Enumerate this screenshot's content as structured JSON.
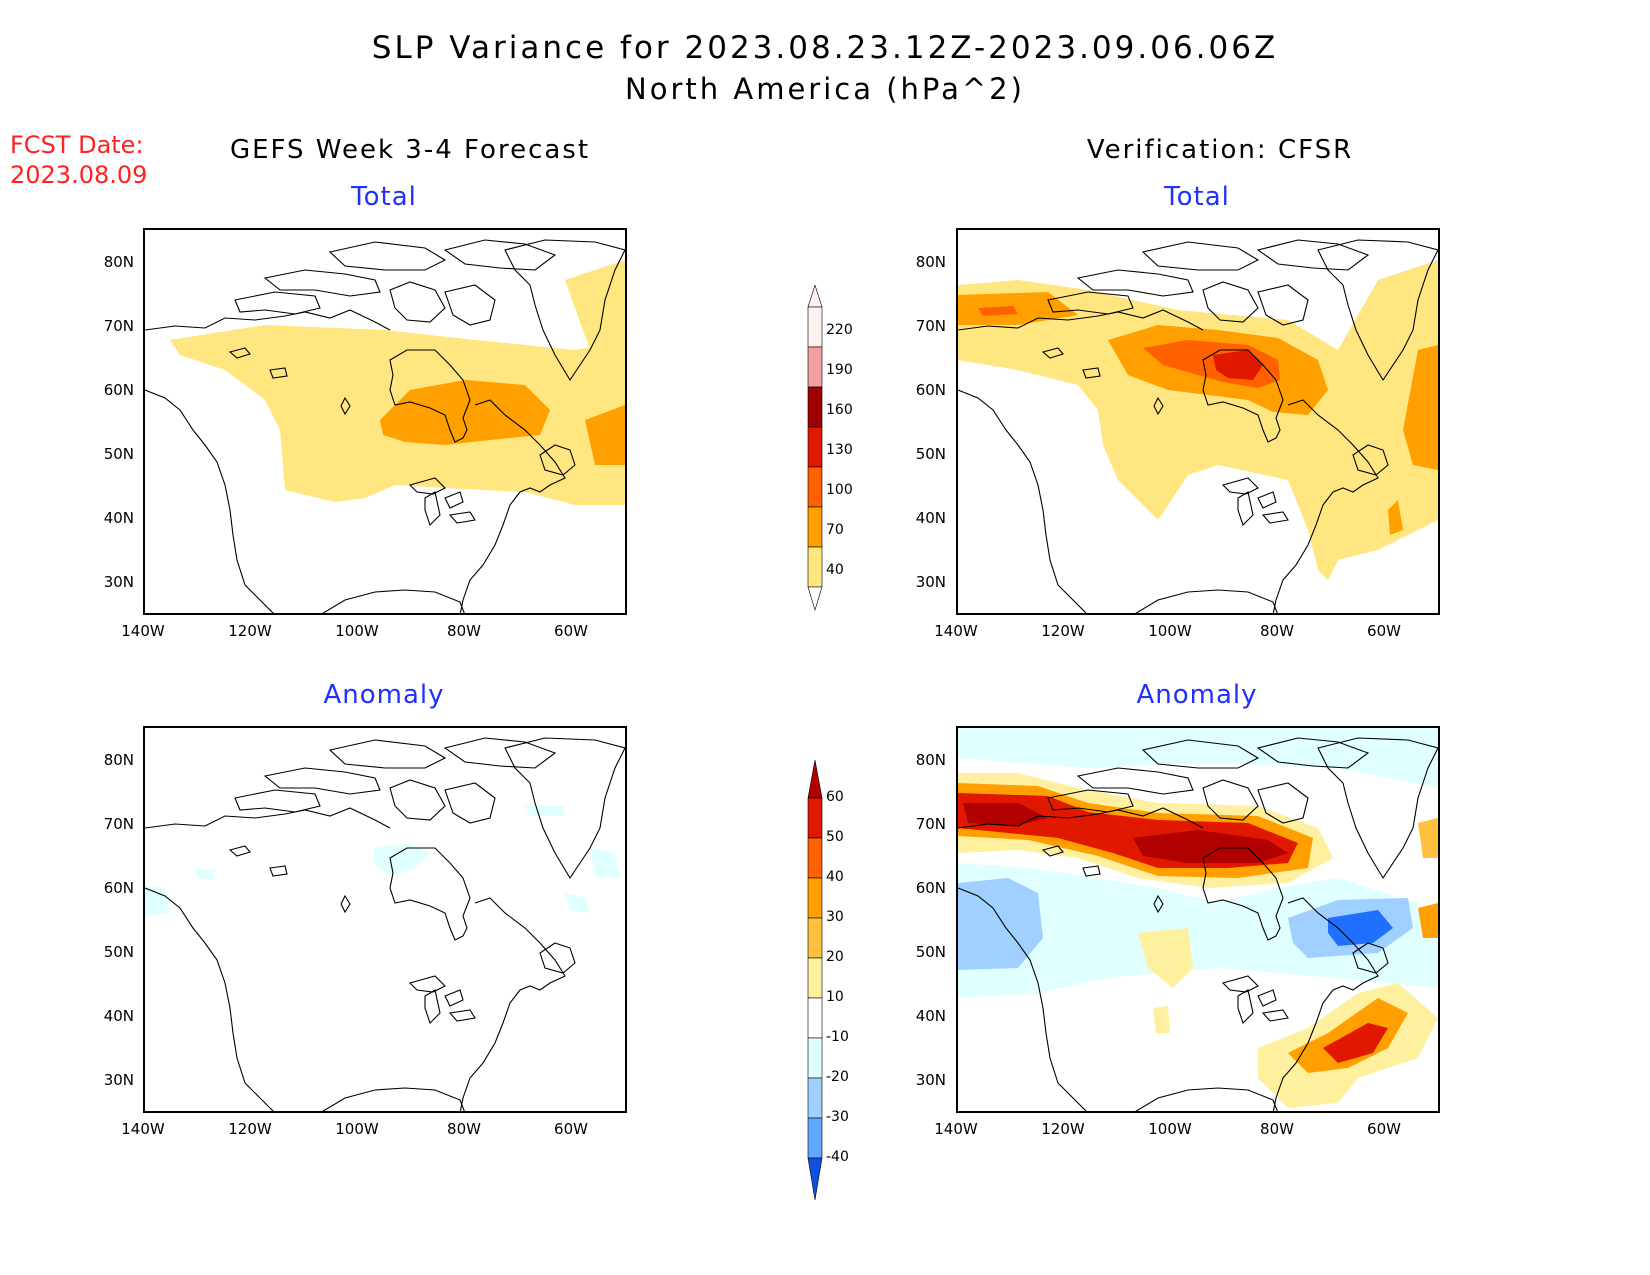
{
  "header": {
    "title_line1": "SLP Variance for 2023.08.23.12Z-2023.09.06.06Z",
    "title_line2": "North America (hPa^2)",
    "fcst_line1": "FCST Date:",
    "fcst_line2": "2023.08.09",
    "left_heading": "GEFS Week 3-4 Forecast",
    "right_heading": "Verification: CFSR"
  },
  "panels": {
    "fcst_total_label": "Total",
    "verif_total_label": "Total",
    "fcst_anom_label": "Anomaly",
    "verif_anom_label": "Anomaly"
  },
  "axes": {
    "lat_labels": [
      "80N",
      "70N",
      "60N",
      "50N",
      "40N",
      "30N"
    ],
    "lon_labels": [
      "140W",
      "120W",
      "100W",
      "80W",
      "60W"
    ]
  },
  "colorbar_total": {
    "levels": [
      "220",
      "190",
      "160",
      "130",
      "100",
      "70",
      "40"
    ],
    "colors": [
      "#fff0f0",
      "#f4a0a0",
      "#a00000",
      "#e01800",
      "#ff6000",
      "#ffa000",
      "#ffe680"
    ]
  },
  "colorbar_anomaly": {
    "levels": [
      "60",
      "50",
      "40",
      "30",
      "20",
      "10",
      "-10",
      "-20",
      "-30",
      "-40"
    ],
    "colors": [
      "#b00000",
      "#e01800",
      "#ff6000",
      "#ffa000",
      "#ffc040",
      "#fff0a0",
      "#ffffff",
      "#e0ffff",
      "#a0d0ff",
      "#60a8ff",
      "#2070ff",
      "#1050e0"
    ]
  }
}
